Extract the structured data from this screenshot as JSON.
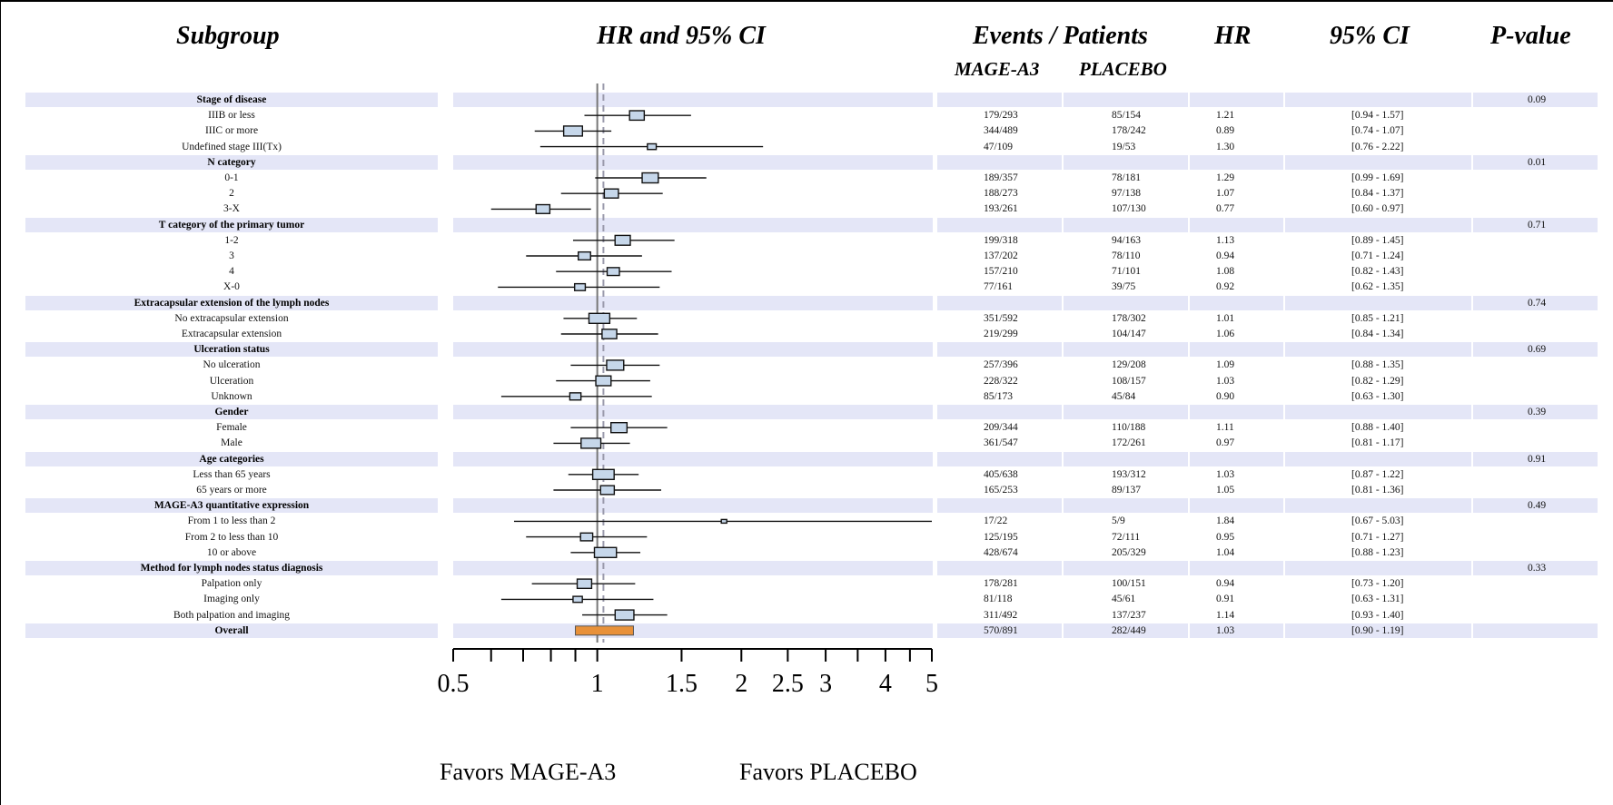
{
  "headers": {
    "subgroup": "Subgroup",
    "hr_ci": "HR and 95% CI",
    "events_patients": "Events / Patients",
    "hr": "HR",
    "ci": "95% CI",
    "pvalue": "P-value",
    "mage": "MAGE-A3",
    "placebo": "PLACEBO"
  },
  "favors": {
    "left": "Favors MAGE-A3",
    "right": "Favors PLACEBO"
  },
  "colors": {
    "band": "#e4e6f7",
    "box": "#c6d7ea",
    "overall": "#e8913a",
    "refline": "#777777",
    "dashline": "#9a9aac"
  },
  "chart_data": {
    "type": "forest",
    "x_scale": "log",
    "xlim": [
      0.5,
      5
    ],
    "xticks_labeled": [
      "0.5",
      "1",
      "1.5",
      "2",
      "2.5",
      "3",
      "4",
      "5"
    ],
    "xticks_labeled_values": [
      0.5,
      1,
      1.5,
      2,
      2.5,
      3,
      4,
      5
    ],
    "xticks_minor": [
      0.6,
      0.7,
      0.8,
      0.9,
      3.5,
      4.5
    ],
    "reference_line": 1,
    "overall_line": 1.03,
    "rows": [
      {
        "label": "Stage of disease",
        "group": true,
        "p": "0.09"
      },
      {
        "label": "IIIB or less",
        "events_mage": "179/293",
        "events_placebo": "85/154",
        "hr": "1.21",
        "ci": "[0.94 - 1.57]",
        "hr_val": 1.21,
        "lo": 0.94,
        "hi": 1.57,
        "n": 447
      },
      {
        "label": "IIIC or more",
        "events_mage": "344/489",
        "events_placebo": "178/242",
        "hr": "0.89",
        "ci": "[0.74 - 1.07]",
        "hr_val": 0.89,
        "lo": 0.74,
        "hi": 1.07,
        "n": 731
      },
      {
        "label": "Undefined stage III(Tx)",
        "events_mage": "47/109",
        "events_placebo": "19/53",
        "hr": "1.30",
        "ci": "[0.76 - 2.22]",
        "hr_val": 1.3,
        "lo": 0.76,
        "hi": 2.22,
        "n": 162
      },
      {
        "label": "N category",
        "group": true,
        "p": "0.01"
      },
      {
        "label": "0-1",
        "events_mage": "189/357",
        "events_placebo": "78/181",
        "hr": "1.29",
        "ci": "[0.99 - 1.69]",
        "hr_val": 1.29,
        "lo": 0.99,
        "hi": 1.69,
        "n": 538
      },
      {
        "label": "2",
        "events_mage": "188/273",
        "events_placebo": "97/138",
        "hr": "1.07",
        "ci": "[0.84 - 1.37]",
        "hr_val": 1.07,
        "lo": 0.84,
        "hi": 1.37,
        "n": 411
      },
      {
        "label": "3-X",
        "events_mage": "193/261",
        "events_placebo": "107/130",
        "hr": "0.77",
        "ci": "[0.60 - 0.97]",
        "hr_val": 0.77,
        "lo": 0.6,
        "hi": 0.97,
        "n": 391
      },
      {
        "label": "T category of the primary tumor",
        "group": true,
        "p": "0.71"
      },
      {
        "label": "1-2",
        "events_mage": "199/318",
        "events_placebo": "94/163",
        "hr": "1.13",
        "ci": "[0.89 - 1.45]",
        "hr_val": 1.13,
        "lo": 0.89,
        "hi": 1.45,
        "n": 481
      },
      {
        "label": "3",
        "events_mage": "137/202",
        "events_placebo": "78/110",
        "hr": "0.94",
        "ci": "[0.71 - 1.24]",
        "hr_val": 0.94,
        "lo": 0.71,
        "hi": 1.24,
        "n": 312
      },
      {
        "label": "4",
        "events_mage": "157/210",
        "events_placebo": "71/101",
        "hr": "1.08",
        "ci": "[0.82 - 1.43]",
        "hr_val": 1.08,
        "lo": 0.82,
        "hi": 1.43,
        "n": 311
      },
      {
        "label": "X-0",
        "events_mage": "77/161",
        "events_placebo": "39/75",
        "hr": "0.92",
        "ci": "[0.62 - 1.35]",
        "hr_val": 0.92,
        "lo": 0.62,
        "hi": 1.35,
        "n": 236
      },
      {
        "label": "Extracapsular extension of the lymph nodes",
        "group": true,
        "p": "0.74"
      },
      {
        "label": "No extracapsular extension",
        "events_mage": "351/592",
        "events_placebo": "178/302",
        "hr": "1.01",
        "ci": "[0.85 - 1.21]",
        "hr_val": 1.01,
        "lo": 0.85,
        "hi": 1.21,
        "n": 894
      },
      {
        "label": "Extracapsular extension",
        "events_mage": "219/299",
        "events_placebo": "104/147",
        "hr": "1.06",
        "ci": "[0.84 - 1.34]",
        "hr_val": 1.06,
        "lo": 0.84,
        "hi": 1.34,
        "n": 446
      },
      {
        "label": "Ulceration status",
        "group": true,
        "p": "0.69"
      },
      {
        "label": "No ulceration",
        "events_mage": "257/396",
        "events_placebo": "129/208",
        "hr": "1.09",
        "ci": "[0.88 - 1.35]",
        "hr_val": 1.09,
        "lo": 0.88,
        "hi": 1.35,
        "n": 604
      },
      {
        "label": "Ulceration",
        "events_mage": "228/322",
        "events_placebo": "108/157",
        "hr": "1.03",
        "ci": "[0.82 - 1.29]",
        "hr_val": 1.03,
        "lo": 0.82,
        "hi": 1.29,
        "n": 479
      },
      {
        "label": "Unknown",
        "events_mage": "85/173",
        "events_placebo": "45/84",
        "hr": "0.90",
        "ci": "[0.63 - 1.30]",
        "hr_val": 0.9,
        "lo": 0.63,
        "hi": 1.3,
        "n": 257
      },
      {
        "label": "Gender",
        "group": true,
        "p": "0.39"
      },
      {
        "label": "Female",
        "events_mage": "209/344",
        "events_placebo": "110/188",
        "hr": "1.11",
        "ci": "[0.88 - 1.40]",
        "hr_val": 1.11,
        "lo": 0.88,
        "hi": 1.4,
        "n": 532
      },
      {
        "label": "Male",
        "events_mage": "361/547",
        "events_placebo": "172/261",
        "hr": "0.97",
        "ci": "[0.81 - 1.17]",
        "hr_val": 0.97,
        "lo": 0.81,
        "hi": 1.17,
        "n": 808
      },
      {
        "label": "Age categories",
        "group": true,
        "p": "0.91"
      },
      {
        "label": "Less than 65 years",
        "events_mage": "405/638",
        "events_placebo": "193/312",
        "hr": "1.03",
        "ci": "[0.87 - 1.22]",
        "hr_val": 1.03,
        "lo": 0.87,
        "hi": 1.22,
        "n": 950
      },
      {
        "label": "65 years or more",
        "events_mage": "165/253",
        "events_placebo": "89/137",
        "hr": "1.05",
        "ci": "[0.81 - 1.36]",
        "hr_val": 1.05,
        "lo": 0.81,
        "hi": 1.36,
        "n": 390
      },
      {
        "label": "MAGE-A3 quantitative expression",
        "group": true,
        "p": "0.49"
      },
      {
        "label": "From 1 to less than 2",
        "events_mage": "17/22",
        "events_placebo": "5/9",
        "hr": "1.84",
        "ci": "[0.67 - 5.03]",
        "hr_val": 1.84,
        "lo": 0.67,
        "hi": 5.03,
        "n": 31
      },
      {
        "label": "From 2 to less than 10",
        "events_mage": "125/195",
        "events_placebo": "72/111",
        "hr": "0.95",
        "ci": "[0.71 - 1.27]",
        "hr_val": 0.95,
        "lo": 0.71,
        "hi": 1.27,
        "n": 306
      },
      {
        "label": "10 or above",
        "events_mage": "428/674",
        "events_placebo": "205/329",
        "hr": "1.04",
        "ci": "[0.88 - 1.23]",
        "hr_val": 1.04,
        "lo": 0.88,
        "hi": 1.23,
        "n": 1003
      },
      {
        "label": "Method for lymph nodes status diagnosis",
        "group": true,
        "p": "0.33"
      },
      {
        "label": "Palpation only",
        "events_mage": "178/281",
        "events_placebo": "100/151",
        "hr": "0.94",
        "ci": "[0.73 - 1.20]",
        "hr_val": 0.94,
        "lo": 0.73,
        "hi": 1.2,
        "n": 432
      },
      {
        "label": "Imaging only",
        "events_mage": "81/118",
        "events_placebo": "45/61",
        "hr": "0.91",
        "ci": "[0.63 - 1.31]",
        "hr_val": 0.91,
        "lo": 0.63,
        "hi": 1.31,
        "n": 179
      },
      {
        "label": "Both palpation and imaging",
        "events_mage": "311/492",
        "events_placebo": "137/237",
        "hr": "1.14",
        "ci": "[0.93 - 1.40]",
        "hr_val": 1.14,
        "lo": 0.93,
        "hi": 1.4,
        "n": 729
      },
      {
        "label": "Overall",
        "group": true,
        "overall": true,
        "events_mage": "570/891",
        "events_placebo": "282/449",
        "hr": "1.03",
        "ci": "[0.90 - 1.19]",
        "hr_val": 1.03,
        "lo": 0.9,
        "hi": 1.19,
        "n": 1340
      }
    ]
  }
}
